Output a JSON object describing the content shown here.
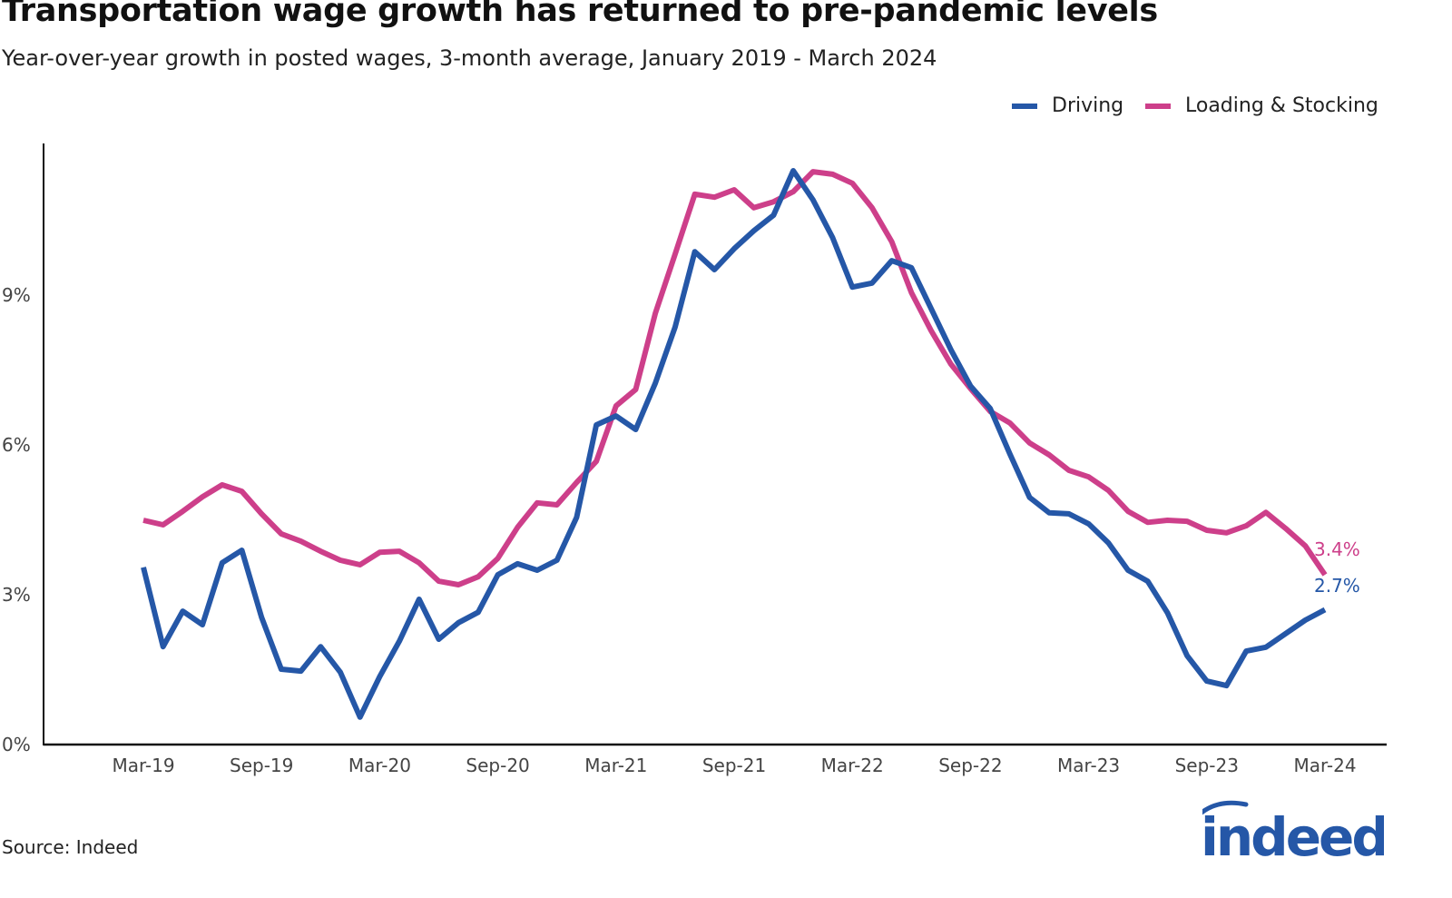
{
  "chart_data": {
    "type": "line",
    "title": "Transportation wage growth has returned to pre-pandemic levels",
    "subtitle": "Year-over-year growth in posted wages, 3-month average, January 2019 - March 2024",
    "source": "Source: Indeed",
    "logo_text": "indeed",
    "xlabel": "",
    "ylabel": "",
    "ylim": [
      0,
      12
    ],
    "yticks": [
      0,
      3,
      6,
      9
    ],
    "ytick_labels": [
      "0%",
      "3%",
      "6%",
      "9%"
    ],
    "xtick_labels": [
      "Mar-19",
      "Sep-19",
      "Mar-20",
      "Sep-20",
      "Mar-21",
      "Sep-21",
      "Mar-22",
      "Sep-22",
      "Mar-23",
      "Sep-23",
      "Mar-24"
    ],
    "grid": false,
    "legend_position": "top-right",
    "x": [
      "Mar-19",
      "Apr-19",
      "May-19",
      "Jun-19",
      "Jul-19",
      "Aug-19",
      "Sep-19",
      "Oct-19",
      "Nov-19",
      "Dec-19",
      "Jan-20",
      "Feb-20",
      "Mar-20",
      "Apr-20",
      "May-20",
      "Jun-20",
      "Jul-20",
      "Aug-20",
      "Sep-20",
      "Oct-20",
      "Nov-20",
      "Dec-20",
      "Jan-21",
      "Feb-21",
      "Mar-21",
      "Apr-21",
      "May-21",
      "Jun-21",
      "Jul-21",
      "Aug-21",
      "Sep-21",
      "Oct-21",
      "Nov-21",
      "Dec-21",
      "Jan-22",
      "Feb-22",
      "Mar-22",
      "Apr-22",
      "May-22",
      "Jun-22",
      "Jul-22",
      "Aug-22",
      "Sep-22",
      "Oct-22",
      "Nov-22",
      "Dec-22",
      "Jan-23",
      "Feb-23",
      "Mar-23",
      "Apr-23",
      "May-23",
      "Jun-23",
      "Jul-23",
      "Aug-23",
      "Sep-23",
      "Oct-23",
      "Nov-23",
      "Dec-23",
      "Jan-24",
      "Feb-24",
      "Mar-24"
    ],
    "series": [
      {
        "name": "Driving",
        "color": "#2557a7",
        "end_label": "2.7%",
        "values": [
          3.55,
          1.96,
          2.67,
          2.4,
          3.64,
          3.89,
          2.55,
          1.51,
          1.47,
          1.96,
          1.45,
          0.55,
          1.36,
          2.07,
          2.91,
          2.11,
          2.44,
          2.65,
          3.4,
          3.62,
          3.49,
          3.69,
          4.55,
          6.4,
          6.58,
          6.31,
          7.24,
          8.36,
          9.87,
          9.51,
          9.93,
          10.29,
          10.6,
          11.49,
          10.91,
          10.15,
          9.16,
          9.24,
          9.69,
          9.55,
          8.73,
          7.91,
          7.18,
          6.73,
          5.82,
          4.95,
          4.64,
          4.62,
          4.42,
          4.04,
          3.49,
          3.27,
          2.64,
          1.78,
          1.27,
          1.18,
          1.87,
          1.95,
          2.22,
          2.49,
          2.7
        ]
      },
      {
        "name": "Loading & Stocking",
        "color": "#cd3f8a",
        "end_label": "3.4%",
        "values": [
          4.49,
          4.4,
          4.67,
          4.96,
          5.2,
          5.07,
          4.62,
          4.22,
          4.07,
          3.87,
          3.69,
          3.6,
          3.85,
          3.87,
          3.64,
          3.27,
          3.2,
          3.36,
          3.73,
          4.35,
          4.84,
          4.8,
          5.25,
          5.67,
          6.78,
          7.11,
          8.64,
          9.82,
          11.02,
          10.96,
          11.11,
          10.75,
          10.87,
          11.07,
          11.47,
          11.42,
          11.24,
          10.75,
          10.07,
          9.05,
          8.29,
          7.62,
          7.13,
          6.67,
          6.44,
          6.04,
          5.8,
          5.49,
          5.36,
          5.09,
          4.67,
          4.45,
          4.49,
          4.47,
          4.29,
          4.24,
          4.38,
          4.65,
          4.33,
          3.98,
          3.4
        ]
      }
    ]
  }
}
